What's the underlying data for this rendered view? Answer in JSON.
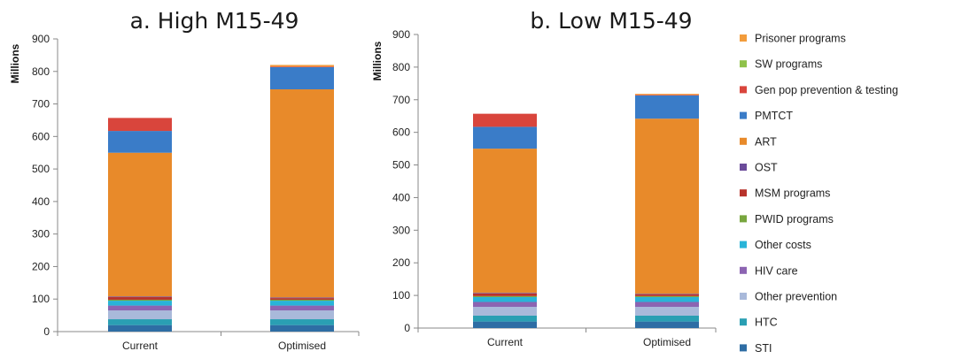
{
  "colors": {
    "STI": "#2e6da4",
    "HTC": "#2a9fb3",
    "Other prevention": "#a9b9da",
    "HIV care": "#8c64b2",
    "Other costs": "#29b4d8",
    "PWID programs": "#78a63e",
    "MSM programs": "#b8332b",
    "OST": "#6b4b9a",
    "ART": "#e88a2a",
    "PMTCT": "#3a7cc8",
    "Gen pop prevention & testing": "#d9453c",
    "SW programs": "#8fc24a",
    "Prisoner programs": "#f29c3c"
  },
  "legend": [
    "Prisoner programs",
    "SW programs",
    "Gen pop prevention & testing",
    "PMTCT",
    "ART",
    "OST",
    "MSM programs",
    "PWID programs",
    "Other costs",
    "HIV care",
    "Other prevention",
    "HTC",
    "STI"
  ],
  "chart_data": [
    {
      "type": "bar",
      "stacked": true,
      "title": "a. High M15-49",
      "ylabel": "Millions",
      "ylim": [
        0,
        900
      ],
      "yticks": [
        0,
        100,
        200,
        300,
        400,
        500,
        600,
        700,
        800,
        900
      ],
      "categories": [
        "Current",
        "Optimised"
      ],
      "series": [
        {
          "name": "STI",
          "values": [
            20,
            20
          ]
        },
        {
          "name": "HTC",
          "values": [
            18,
            18
          ]
        },
        {
          "name": "Other prevention",
          "values": [
            27,
            27
          ]
        },
        {
          "name": "HIV care",
          "values": [
            15,
            15
          ]
        },
        {
          "name": "Other costs",
          "values": [
            15,
            15
          ]
        },
        {
          "name": "PWID programs",
          "values": [
            3,
            3
          ]
        },
        {
          "name": "MSM programs",
          "values": [
            8,
            5
          ]
        },
        {
          "name": "OST",
          "values": [
            2,
            2
          ]
        },
        {
          "name": "ART",
          "values": [
            442,
            640
          ]
        },
        {
          "name": "PMTCT",
          "values": [
            67,
            68
          ]
        },
        {
          "name": "Gen pop prevention & testing",
          "values": [
            40,
            2
          ]
        },
        {
          "name": "SW programs",
          "values": [
            0,
            0
          ]
        },
        {
          "name": "Prisoner programs",
          "values": [
            0,
            5
          ]
        }
      ]
    },
    {
      "type": "bar",
      "stacked": true,
      "title": "b. Low M15-49",
      "ylabel": "Millions",
      "ylim": [
        0,
        900
      ],
      "yticks": [
        0,
        100,
        200,
        300,
        400,
        500,
        600,
        700,
        800,
        900
      ],
      "categories": [
        "Current",
        "Optimised"
      ],
      "series": [
        {
          "name": "STI",
          "values": [
            20,
            20
          ]
        },
        {
          "name": "HTC",
          "values": [
            18,
            18
          ]
        },
        {
          "name": "Other prevention",
          "values": [
            27,
            27
          ]
        },
        {
          "name": "HIV care",
          "values": [
            15,
            15
          ]
        },
        {
          "name": "Other costs",
          "values": [
            15,
            15
          ]
        },
        {
          "name": "PWID programs",
          "values": [
            3,
            3
          ]
        },
        {
          "name": "MSM programs",
          "values": [
            8,
            5
          ]
        },
        {
          "name": "OST",
          "values": [
            2,
            2
          ]
        },
        {
          "name": "ART",
          "values": [
            442,
            537
          ]
        },
        {
          "name": "PMTCT",
          "values": [
            67,
            71
          ]
        },
        {
          "name": "Gen pop prevention & testing",
          "values": [
            40,
            2
          ]
        },
        {
          "name": "SW programs",
          "values": [
            0,
            0
          ]
        },
        {
          "name": "Prisoner programs",
          "values": [
            0,
            3
          ]
        }
      ]
    }
  ]
}
